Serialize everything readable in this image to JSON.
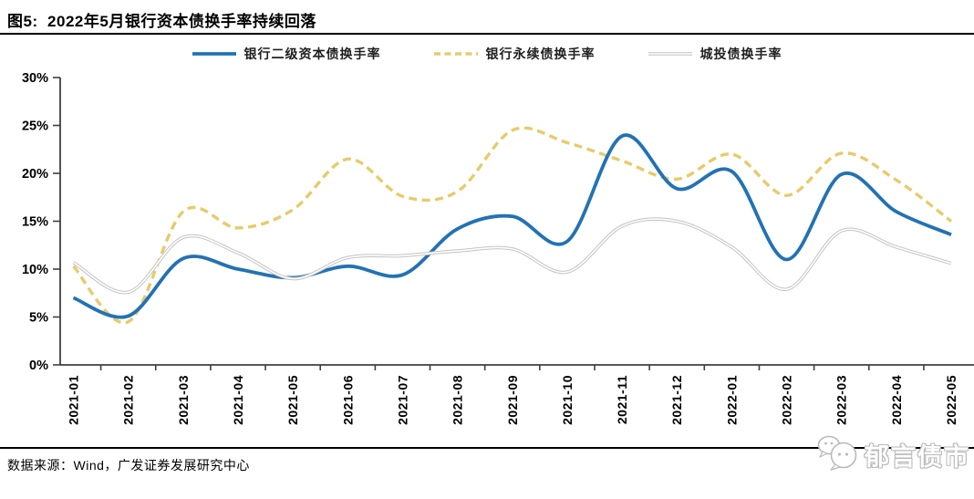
{
  "figure": {
    "title": "图5:  2022年5月银行资本债换手率持续回落",
    "source": "数据来源：Wind，广发证券发展研究中心",
    "brand": "郁言债市",
    "brand_icon": "wechat-chat-bubbles",
    "colors": {
      "tier2_blue": "#2272B4",
      "perpetual_yellow": "#E7CB6B",
      "urban_gray": "#C3C3C3",
      "axis": "#3F3F3F",
      "rule_black": "#000000",
      "brand_gray": "#B9B9B9"
    }
  },
  "chart_data": {
    "type": "line",
    "categories": [
      "2021-01",
      "2021-02",
      "2021-03",
      "2021-04",
      "2021-05",
      "2021-06",
      "2021-07",
      "2021-08",
      "2021-09",
      "2021-10",
      "2021-11",
      "2021-12",
      "2022-01",
      "2022-02",
      "2022-03",
      "2022-04",
      "2022-05"
    ],
    "series": [
      {
        "key": "tier2-capital-bond",
        "name": "银行二级资本债换手率",
        "color": "#2272B4",
        "style": "solid",
        "values": [
          7.0,
          5.1,
          11.1,
          10.0,
          9.1,
          10.3,
          9.4,
          14.2,
          15.5,
          12.9,
          23.9,
          18.4,
          20.2,
          11.0,
          19.9,
          16.0,
          13.6
        ]
      },
      {
        "key": "perpetual-bond",
        "name": "银行永续债换手率",
        "color": "#E7CB6B",
        "style": "dashed",
        "values": [
          10.3,
          4.5,
          16.0,
          14.3,
          16.2,
          21.5,
          17.6,
          18.1,
          24.5,
          23.2,
          21.3,
          19.4,
          22.0,
          17.7,
          22.1,
          19.3,
          15.0
        ]
      },
      {
        "key": "urban-investment-bond",
        "name": "城投债换手率",
        "color": "#C3C3C3",
        "style": "double",
        "values": [
          10.7,
          7.6,
          13.3,
          11.7,
          9.0,
          11.2,
          11.4,
          11.9,
          12.1,
          9.7,
          14.5,
          15.0,
          12.3,
          7.9,
          14.0,
          12.3,
          10.6
        ]
      }
    ],
    "draw_order": [
      1,
      0,
      2
    ],
    "title": "2022年5月银行资本债换手率持续回落",
    "xlabel": "",
    "ylabel": "",
    "ylim": [
      0,
      30
    ],
    "ytick_step": 5,
    "ytick_suffix": "%",
    "x_tick_label_rotation": 90,
    "legend_position": "top",
    "grid": false
  }
}
